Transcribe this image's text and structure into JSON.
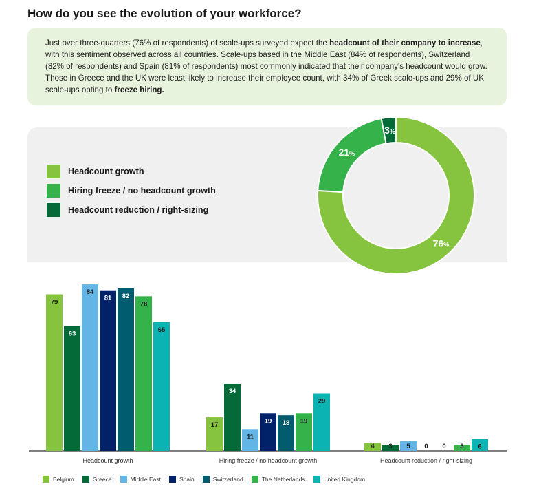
{
  "page": {
    "title": "How do you see the evolution of your workforce?",
    "intro": {
      "p1": "Just over three-quarters (76% of respondents) of scale-ups surveyed expect the ",
      "b1": "headcount of their company to increase",
      "p2": ", with this sentiment observed across all countries. Scale-ups based in the Middle East (84% of respondents), Switzerland (82% of respondents) and Spain (81% of respondents) most commonly indicated that their company's headcount would grow. Those in Greece and the UK were least likely to increase their employee count, with 34% of Greek scale-ups and 29% of UK scale-ups opting to ",
      "b2": "freeze hiring.",
      "p3": ""
    }
  },
  "chart_data": [
    {
      "type": "pie",
      "labels": [
        "Headcount growth",
        "Hiring freeze / no headcount growth",
        "Headcount reduction / right-sizing"
      ],
      "values": [
        76,
        21,
        3
      ],
      "value_suffix": "%",
      "colors": [
        "#86c440",
        "#35b24a",
        "#046a38"
      ],
      "legend_placement": "left"
    },
    {
      "type": "bar",
      "categories": [
        "Headcount growth",
        "Hiring freeze / no headcount growth",
        "Headcount reduction / right-sizing"
      ],
      "series": [
        {
          "name": "Belgium",
          "color": "#86c440",
          "values": [
            79,
            17,
            4
          ]
        },
        {
          "name": "Greece",
          "color": "#046a38",
          "values": [
            63,
            34,
            3
          ]
        },
        {
          "name": "Middle East",
          "color": "#62b5e5",
          "values": [
            84,
            11,
            5
          ]
        },
        {
          "name": "Spain",
          "color": "#012169",
          "values": [
            81,
            19,
            0
          ]
        },
        {
          "name": "Switzerland",
          "color": "#005c6e",
          "values": [
            82,
            18,
            0
          ]
        },
        {
          "name": "The Netherlands",
          "color": "#35b24a",
          "values": [
            78,
            19,
            3
          ]
        },
        {
          "name": "United Kingdom",
          "color": "#0bb3b3",
          "values": [
            65,
            29,
            6
          ]
        }
      ],
      "ylim": [
        0,
        100
      ],
      "grid": false,
      "legend_placement": "bottom"
    }
  ]
}
